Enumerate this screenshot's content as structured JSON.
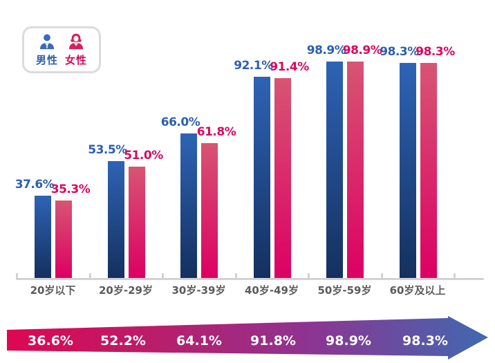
{
  "legend": {
    "male_label": "男性",
    "female_label": "女性"
  },
  "colors": {
    "male_bar_top": "#2e63b5",
    "male_bar_bottom": "#14305e",
    "female_bar_top": "#d75573",
    "female_bar_bottom": "#dc0063",
    "male_value_text": "#2b5faf",
    "female_value_text": "#d8085f",
    "axis": "#d2d2d2",
    "category_text": "#5b5b5b",
    "arrow_gradient_start": "#de0750",
    "arrow_gradient_mid": "#8f3390",
    "arrow_gradient_end": "#4069b1",
    "arrow_text": "#ffffff"
  },
  "chart_data": [
    {
      "type": "bar",
      "title": "",
      "xlabel": "",
      "ylabel": "",
      "ylim": [
        0,
        100
      ],
      "grid": false,
      "legend_position": "top-left",
      "categories": [
        "20岁以下",
        "20岁-29岁",
        "30岁-39岁",
        "40岁-49岁",
        "50岁-59岁",
        "60岁及以上"
      ],
      "series": [
        {
          "name": "男性",
          "values": [
            37.6,
            53.5,
            66.0,
            92.1,
            98.9,
            98.3
          ],
          "labels": [
            "37.6%",
            "53.5%",
            "66.0%",
            "92.1%",
            "98.9%",
            "98.3%"
          ]
        },
        {
          "name": "女性",
          "values": [
            35.3,
            51.0,
            61.8,
            91.4,
            98.9,
            98.3
          ],
          "labels": [
            "35.3%",
            "51.0%",
            "61.8%",
            "91.4%",
            "98.9%",
            "98.3%"
          ]
        }
      ]
    },
    {
      "type": "arrow",
      "description": "gradient trend arrow, overall value per age group",
      "categories": [
        "20岁以下",
        "20岁-29岁",
        "30岁-39岁",
        "40岁-49岁",
        "50岁-59岁",
        "60岁及以上"
      ],
      "values": [
        36.6,
        52.2,
        64.1,
        91.8,
        98.9,
        98.3
      ],
      "labels": [
        "36.6%",
        "52.2%",
        "64.1%",
        "91.8%",
        "98.9%",
        "98.3%"
      ]
    }
  ]
}
